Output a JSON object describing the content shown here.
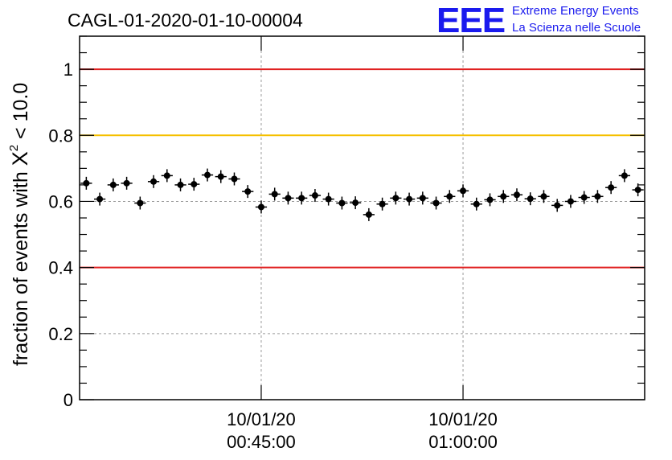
{
  "chart_data": {
    "type": "scatter",
    "title": "CAGL-01-2020-01-10-00004",
    "ylabel": "fraction of events with χ² < 10.0",
    "ylabel_parts": {
      "before": "fraction of events with ",
      "symbol": "X",
      "power": "2",
      "after": " < 10.0"
    },
    "ylim": [
      0,
      1.1
    ],
    "yticks": [
      0,
      0.2,
      0.4,
      0.6,
      0.8,
      1
    ],
    "ytick_labels": [
      "0",
      "0.2",
      "0.4",
      "0.6",
      "0.8",
      "1"
    ],
    "xticks": [
      {
        "pos": 14,
        "date": "10/01/20",
        "time": "00:45:00"
      },
      {
        "pos": 29,
        "date": "10/01/20",
        "time": "01:00:00"
      }
    ],
    "grid": true,
    "reference_lines": [
      {
        "value": 1.0,
        "color": "#e02020"
      },
      {
        "value": 0.8,
        "color": "#f5c000"
      },
      {
        "value": 0.4,
        "color": "#e02020"
      }
    ],
    "series": [
      {
        "marker_color": "#000000",
        "x": [
          1,
          2,
          3,
          4,
          5,
          6,
          7,
          8,
          9,
          10,
          11,
          12,
          13,
          14,
          15,
          16,
          17,
          18,
          19,
          20,
          21,
          22,
          23,
          24,
          25,
          26,
          27,
          28,
          29,
          30,
          31,
          32,
          33,
          34,
          35,
          36,
          37,
          38,
          39,
          40,
          41,
          42
        ],
        "values": [
          0.655,
          0.607,
          0.65,
          0.655,
          0.595,
          0.66,
          0.678,
          0.65,
          0.652,
          0.68,
          0.675,
          0.668,
          0.63,
          0.583,
          0.622,
          0.61,
          0.61,
          0.618,
          0.607,
          0.595,
          0.596,
          0.56,
          0.592,
          0.61,
          0.607,
          0.61,
          0.595,
          0.615,
          0.632,
          0.592,
          0.605,
          0.615,
          0.62,
          0.608,
          0.615,
          0.588,
          0.6,
          0.612,
          0.615,
          0.642,
          0.678,
          0.635
        ]
      }
    ]
  },
  "logo": {
    "mark": "EEE",
    "line1": "Extreme Energy Events",
    "line2": "La Scienza nelle Scuole"
  }
}
